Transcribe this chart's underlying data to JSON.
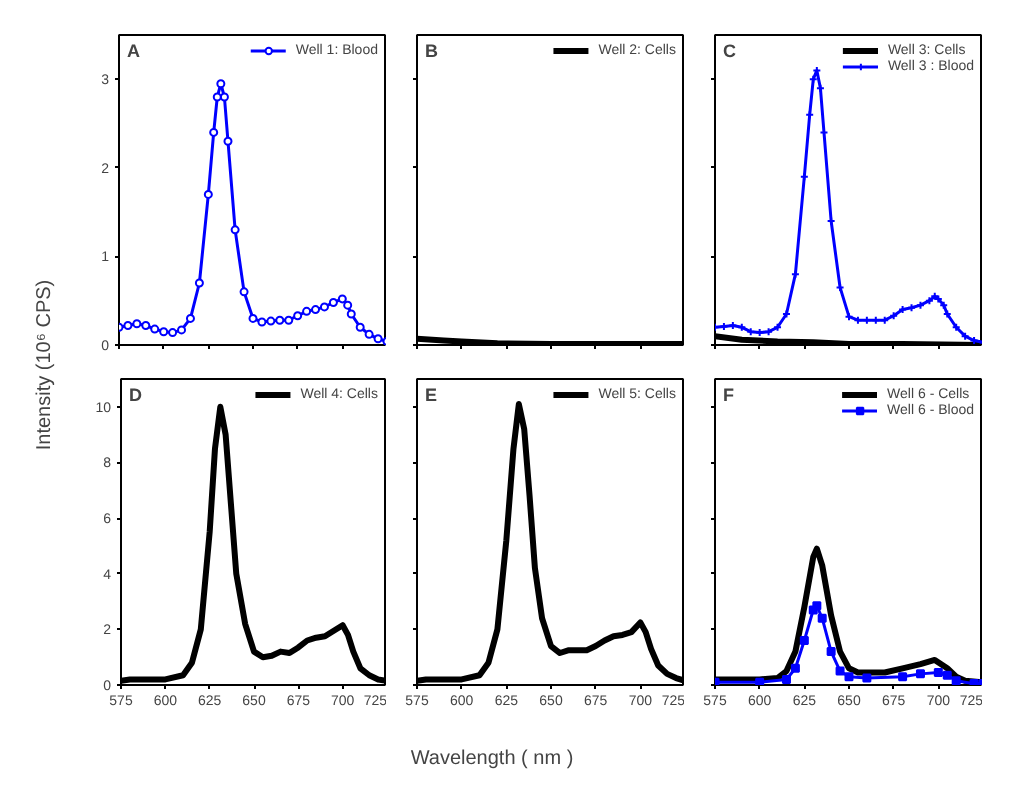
{
  "chart_data": [
    {
      "type": "line",
      "annotations": [
        "A"
      ],
      "ylabel": "Intensity (10⁶ CPS)",
      "xlim": [
        575,
        725
      ],
      "xticks": [
        575,
        600,
        625,
        650,
        675,
        700,
        725
      ],
      "ylim": [
        0,
        3.5
      ],
      "yticks": [
        0,
        1,
        2,
        3
      ],
      "tick_labels": "y",
      "legend": "top right",
      "series": [
        {
          "name": "Well 1: Blood",
          "color": "#0000ff",
          "marker": "circle",
          "x": [
            575,
            580,
            585,
            590,
            595,
            600,
            605,
            610,
            615,
            620,
            625,
            628,
            630,
            632,
            634,
            636,
            640,
            645,
            650,
            655,
            660,
            665,
            670,
            675,
            680,
            685,
            690,
            695,
            700,
            703,
            705,
            710,
            715,
            720,
            725
          ],
          "values": [
            0.2,
            0.22,
            0.24,
            0.22,
            0.18,
            0.15,
            0.14,
            0.17,
            0.3,
            0.7,
            1.7,
            2.4,
            2.8,
            2.95,
            2.8,
            2.3,
            1.3,
            0.6,
            0.3,
            0.26,
            0.27,
            0.28,
            0.28,
            0.33,
            0.38,
            0.4,
            0.43,
            0.48,
            0.52,
            0.45,
            0.35,
            0.2,
            0.12,
            0.07,
            0.04
          ]
        }
      ]
    },
    {
      "type": "line",
      "annotations": [
        "B"
      ],
      "xlim": [
        575,
        725
      ],
      "xticks": [
        575,
        600,
        625,
        650,
        675,
        700,
        725
      ],
      "ylim": [
        0,
        3.5
      ],
      "yticks": [
        0,
        1,
        2,
        3
      ],
      "tick_labels": false,
      "legend": "top right",
      "series": [
        {
          "name": "Well 2: Cells",
          "color": "#000000",
          "marker": "none",
          "x": [
            575,
            590,
            600,
            620,
            650,
            700,
            725
          ],
          "values": [
            0.07,
            0.05,
            0.04,
            0.02,
            0.01,
            0.01,
            0.01
          ]
        }
      ]
    },
    {
      "type": "line",
      "annotations": [
        "C"
      ],
      "xlim": [
        575,
        725
      ],
      "xticks": [
        575,
        600,
        625,
        650,
        675,
        700,
        725
      ],
      "ylim": [
        0,
        3.5
      ],
      "yticks": [
        0,
        1,
        2,
        3
      ],
      "tick_labels": false,
      "legend": "top right",
      "series": [
        {
          "name": "Well 3: Cells",
          "color": "#000000",
          "marker": "none",
          "x": [
            575,
            590,
            610,
            630,
            650,
            680,
            725
          ],
          "values": [
            0.1,
            0.06,
            0.04,
            0.03,
            0.01,
            0.01,
            0.0
          ]
        },
        {
          "name": "Well 3 : Blood",
          "color": "#0000ff",
          "marker": "cross",
          "x": [
            575,
            580,
            585,
            590,
            595,
            600,
            605,
            610,
            615,
            620,
            625,
            628,
            630,
            632,
            634,
            636,
            640,
            645,
            650,
            655,
            660,
            665,
            670,
            675,
            680,
            685,
            690,
            695,
            698,
            700,
            703,
            705,
            710,
            715,
            720,
            725
          ],
          "values": [
            0.2,
            0.21,
            0.22,
            0.2,
            0.15,
            0.14,
            0.15,
            0.2,
            0.35,
            0.8,
            1.9,
            2.6,
            3.0,
            3.1,
            2.9,
            2.4,
            1.4,
            0.65,
            0.32,
            0.28,
            0.28,
            0.28,
            0.28,
            0.33,
            0.4,
            0.42,
            0.45,
            0.5,
            0.55,
            0.52,
            0.45,
            0.35,
            0.2,
            0.1,
            0.05,
            0.03
          ]
        }
      ]
    },
    {
      "type": "line",
      "annotations": [
        "D"
      ],
      "xlim": [
        575,
        725
      ],
      "xticks": [
        575,
        600,
        625,
        650,
        675,
        700,
        725
      ],
      "ylim": [
        0,
        11
      ],
      "yticks": [
        0,
        2,
        4,
        6,
        8,
        10
      ],
      "legend": "top right",
      "series": [
        {
          "name": "Well 4: Cells",
          "color": "#000000",
          "marker": "none",
          "x": [
            575,
            580,
            600,
            610,
            615,
            620,
            625,
            628,
            631,
            634,
            637,
            640,
            645,
            650,
            655,
            660,
            665,
            670,
            675,
            680,
            685,
            690,
            695,
            700,
            703,
            706,
            710,
            715,
            720,
            725
          ],
          "values": [
            0.15,
            0.2,
            0.2,
            0.35,
            0.8,
            2.0,
            5.5,
            8.5,
            10.0,
            9.0,
            6.5,
            4.0,
            2.2,
            1.2,
            1.0,
            1.05,
            1.2,
            1.15,
            1.35,
            1.6,
            1.7,
            1.75,
            1.95,
            2.15,
            1.8,
            1.2,
            0.6,
            0.35,
            0.2,
            0.15
          ]
        }
      ]
    },
    {
      "type": "line",
      "annotations": [
        "E"
      ],
      "xlabel": "Wavelength ( nm )",
      "xlim": [
        575,
        725
      ],
      "xticks": [
        575,
        600,
        625,
        650,
        675,
        700,
        725
      ],
      "ylim": [
        0,
        11
      ],
      "yticks": [
        0,
        2,
        4,
        6,
        8,
        10
      ],
      "tick_labels": "x",
      "legend": "top right",
      "series": [
        {
          "name": "Well 5: Cells",
          "color": "#000000",
          "marker": "none",
          "x": [
            575,
            580,
            600,
            610,
            615,
            620,
            625,
            629,
            632,
            635,
            638,
            641,
            645,
            650,
            655,
            660,
            665,
            670,
            675,
            680,
            685,
            690,
            695,
            700,
            703,
            706,
            710,
            715,
            720,
            725
          ],
          "values": [
            0.15,
            0.2,
            0.2,
            0.35,
            0.8,
            2.0,
            5.2,
            8.5,
            10.1,
            9.2,
            6.8,
            4.2,
            2.4,
            1.4,
            1.15,
            1.25,
            1.25,
            1.25,
            1.4,
            1.6,
            1.75,
            1.8,
            1.9,
            2.25,
            1.9,
            1.3,
            0.7,
            0.4,
            0.25,
            0.15
          ]
        }
      ]
    },
    {
      "type": "line",
      "annotations": [
        "F"
      ],
      "xlim": [
        575,
        725
      ],
      "xticks": [
        575,
        600,
        625,
        650,
        675,
        700,
        725
      ],
      "ylim": [
        0,
        11
      ],
      "yticks": [
        0,
        2,
        4,
        6,
        8,
        10
      ],
      "tick_labels": "x",
      "legend": "top right",
      "series": [
        {
          "name": "Well 6 - Cells",
          "color": "#000000",
          "marker": "none",
          "x": [
            575,
            600,
            610,
            615,
            620,
            625,
            630,
            632,
            635,
            640,
            645,
            650,
            655,
            670,
            680,
            690,
            698,
            705,
            710,
            715,
            725
          ],
          "values": [
            0.2,
            0.2,
            0.25,
            0.5,
            1.2,
            2.8,
            4.6,
            4.9,
            4.3,
            2.5,
            1.2,
            0.6,
            0.45,
            0.45,
            0.6,
            0.75,
            0.9,
            0.6,
            0.3,
            0.15,
            0.1
          ]
        },
        {
          "name": "Well 6 - Blood",
          "color": "#0000ff",
          "marker": "square",
          "x": [
            575,
            600,
            615,
            620,
            625,
            630,
            632,
            635,
            640,
            645,
            650,
            660,
            680,
            690,
            700,
            705,
            710,
            720,
            725
          ],
          "values": [
            0.1,
            0.1,
            0.2,
            0.6,
            1.6,
            2.7,
            2.85,
            2.4,
            1.2,
            0.5,
            0.3,
            0.25,
            0.3,
            0.4,
            0.45,
            0.35,
            0.15,
            0.05,
            0.05
          ]
        }
      ]
    }
  ]
}
